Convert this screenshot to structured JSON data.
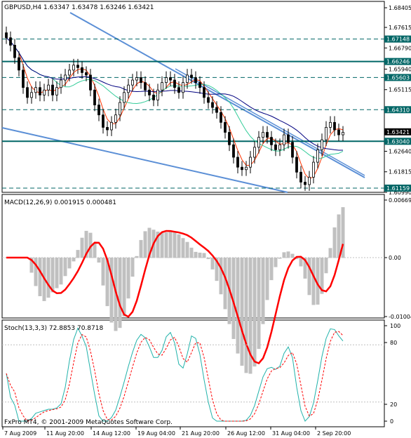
{
  "main_panel": {
    "symbol_label": "GBPUSD,H4",
    "ohlc_label": "1.63347 1.63478 1.63246 1.63421",
    "yticks": [
      "1.68405",
      "1.67615",
      "1.66790",
      "1.65940",
      "1.65115",
      "1.64310",
      "1.63421",
      "1.62640",
      "1.61815",
      "1.60990"
    ],
    "level_tags": [
      {
        "text": "1.67148",
        "value": 1.67148
      },
      {
        "text": "1.66246",
        "value": 1.66246
      },
      {
        "text": "1.65603",
        "value": 1.65603
      },
      {
        "text": "1.64310",
        "value": 1.6431
      },
      {
        "text": "1.63040",
        "value": 1.6304
      },
      {
        "text": "1.61159",
        "value": 1.61159
      }
    ],
    "current_price_tag": "1.63421"
  },
  "macd_panel": {
    "label": "MACD(12,26,9) 0.001915 0.000481",
    "yticks": [
      "0.00669",
      "0.00",
      "-0.01004"
    ]
  },
  "stoch_panel": {
    "label": "Stoch(13,3,3) 72.8853 70.8718",
    "yticks": [
      "100",
      "80",
      "20",
      "0"
    ]
  },
  "x_axis": {
    "labels": [
      "7 Aug 2009",
      "11 Aug 20:00",
      "14 Aug 12:00",
      "19 Aug 04:00",
      "21 Aug 20:00",
      "26 Aug 12:00",
      "31 Aug 04:00",
      "2 Sep 20:00"
    ]
  },
  "copyright": "FxPro MT4, © 2001-2009 MetaQuotes Software Corp.",
  "colors": {
    "candle": "#000000",
    "ma_fast": "#ff3300",
    "ma_mid": "#33cc99",
    "ma_slow": "#000080",
    "channel": "#5b8fd6",
    "level_line": "#006666",
    "macd_hist": "#c0c0c0",
    "macd_signal": "#ff0000",
    "stoch_main": "#20b2aa",
    "stoch_signal": "#ff0000"
  },
  "chart_data": {
    "type": "candlestick",
    "title": "GBPUSD,H4",
    "ylim": [
      1.6099,
      1.6866
    ],
    "levels": [
      1.67148,
      1.66246,
      1.65603,
      1.6431,
      1.6304,
      1.61159
    ],
    "close_series": [
      1.672,
      1.669,
      1.664,
      1.659,
      1.652,
      1.648,
      1.65,
      1.652,
      1.649,
      1.651,
      1.653,
      1.649,
      1.652,
      1.655,
      1.657,
      1.659,
      1.661,
      1.66,
      1.658,
      1.657,
      1.651,
      1.645,
      1.641,
      1.636,
      1.635,
      1.638,
      1.641,
      1.646,
      1.65,
      1.653,
      1.655,
      1.656,
      1.654,
      1.651,
      1.649,
      1.647,
      1.651,
      1.654,
      1.656,
      1.655,
      1.652,
      1.65,
      1.654,
      1.657,
      1.656,
      1.654,
      1.652,
      1.648,
      1.646,
      1.644,
      1.642,
      1.638,
      1.634,
      1.629,
      1.624,
      1.62,
      1.619,
      1.62,
      1.624,
      1.628,
      1.632,
      1.634,
      1.632,
      1.629,
      1.627,
      1.629,
      1.633,
      1.63,
      1.624,
      1.618,
      1.614,
      1.613,
      1.616,
      1.622,
      1.627,
      1.631,
      1.636,
      1.638,
      1.635,
      1.633,
      1.634
    ],
    "macd": {
      "label": "MACD(12,26,9)",
      "main": 0.001915,
      "signal": 0.000481,
      "ylim": [
        -0.01004,
        0.00669
      ]
    },
    "stochastic": {
      "label": "Stoch(13,3,3)",
      "main": 72.8853,
      "signal": 70.8718,
      "ylim": [
        0,
        100
      ],
      "levels": [
        20,
        80
      ]
    },
    "x_labels": [
      "7 Aug 2009",
      "11 Aug 20:00",
      "14 Aug 12:00",
      "19 Aug 04:00",
      "21 Aug 20:00",
      "26 Aug 12:00",
      "31 Aug 04:00",
      "2 Sep 20:00"
    ]
  }
}
